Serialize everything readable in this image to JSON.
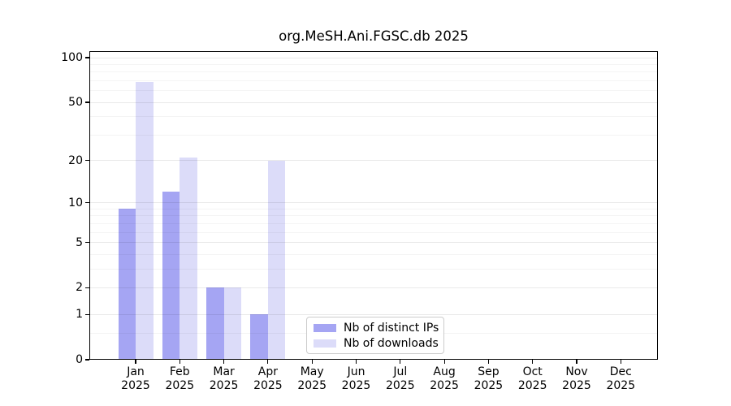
{
  "title": "org.MeSH.Ani.FGSC.db 2025",
  "legend": {
    "items": [
      {
        "label": "Nb of distinct IPs"
      },
      {
        "label": "Nb of downloads"
      }
    ]
  },
  "chart_data": {
    "type": "bar",
    "scale": "log1p",
    "title": "org.MeSH.Ani.FGSC.db 2025",
    "xlabel": "",
    "ylabel": "",
    "year": "2025",
    "categories": [
      "Jan",
      "Feb",
      "Mar",
      "Apr",
      "May",
      "Jun",
      "Jul",
      "Aug",
      "Sep",
      "Oct",
      "Nov",
      "Dec"
    ],
    "series": [
      {
        "name": "Nb of distinct IPs",
        "color": "#a5a5f3",
        "values": [
          9,
          12,
          2,
          1,
          0,
          0,
          0,
          0,
          0,
          0,
          0,
          0
        ]
      },
      {
        "name": "Nb of downloads",
        "color": "#dcdcf9",
        "values": [
          69,
          21,
          2,
          20,
          0,
          0,
          0,
          0,
          0,
          0,
          0,
          0
        ]
      }
    ],
    "yticks": [
      100,
      50,
      20,
      10,
      5,
      2,
      1,
      0
    ],
    "minor_gridlines": [
      0.5,
      3,
      4,
      6,
      7,
      8,
      9,
      30,
      40,
      60,
      70,
      80,
      90
    ],
    "ylim": [
      0,
      110
    ],
    "grid": true,
    "legend_position": "lower center"
  },
  "colors": {
    "distinct_ips_bar": "#a5a5f3",
    "downloads_bar": "#dcdcf9",
    "major_grid": "rgba(0,0,0,0.085)",
    "minor_grid": "rgba(0,0,0,0.045)",
    "axis": "#000000",
    "legend_border": "#cccccc"
  }
}
